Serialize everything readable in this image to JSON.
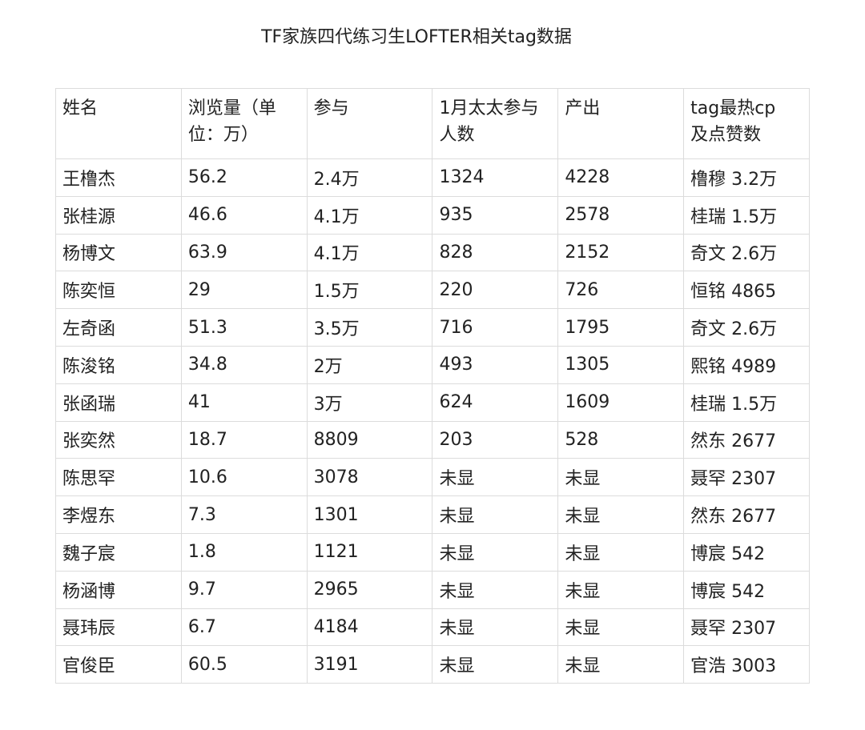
{
  "title": "TF家族四代练习生LOFTER相关tag数据",
  "table": {
    "headers": [
      [
        "姓名"
      ],
      [
        "浏览量（单",
        "位：万）"
      ],
      [
        "参与"
      ],
      [
        "1月太太参与",
        "人数"
      ],
      [
        "产出"
      ],
      [
        "tag最热cp",
        "及点赞数"
      ]
    ],
    "rows": [
      [
        "王橹杰",
        "56.2",
        "2.4万",
        "1324",
        "4228",
        "橹穆 3.2万"
      ],
      [
        "张桂源",
        "46.6",
        "4.1万",
        "935",
        "2578",
        "桂瑞 1.5万"
      ],
      [
        "杨博文",
        "63.9",
        "4.1万",
        "828",
        "2152",
        "奇文 2.6万"
      ],
      [
        "陈奕恒",
        "29",
        "1.5万",
        "220",
        "726",
        "恒铭  4865"
      ],
      [
        "左奇函",
        "51.3",
        "3.5万",
        "716",
        "1795",
        "奇文 2.6万"
      ],
      [
        "陈浚铭",
        "34.8",
        "2万",
        "493",
        "1305",
        "熙铭 4989"
      ],
      [
        "张函瑞",
        "41",
        "3万",
        "624",
        "1609",
        "桂瑞 1.5万"
      ],
      [
        "张奕然",
        "18.7",
        "8809",
        "203",
        "528",
        "然东 2677"
      ],
      [
        "陈思罕",
        "10.6",
        "3078",
        "未显",
        "未显",
        "聂罕 2307"
      ],
      [
        "李煜东",
        "7.3",
        "1301",
        "未显",
        "未显",
        "然东 2677"
      ],
      [
        "魏子宸",
        "1.8",
        "1121",
        "未显",
        "未显",
        "博宸 542"
      ],
      [
        "杨涵博",
        "9.7",
        "2965",
        "未显",
        "未显",
        "博宸 542"
      ],
      [
        "聂玮辰",
        "6.7",
        "4184",
        "未显",
        "未显",
        "聂罕 2307"
      ],
      [
        "官俊臣",
        "60.5",
        "3191",
        "未显",
        "未显",
        "官浩 3003"
      ]
    ]
  }
}
